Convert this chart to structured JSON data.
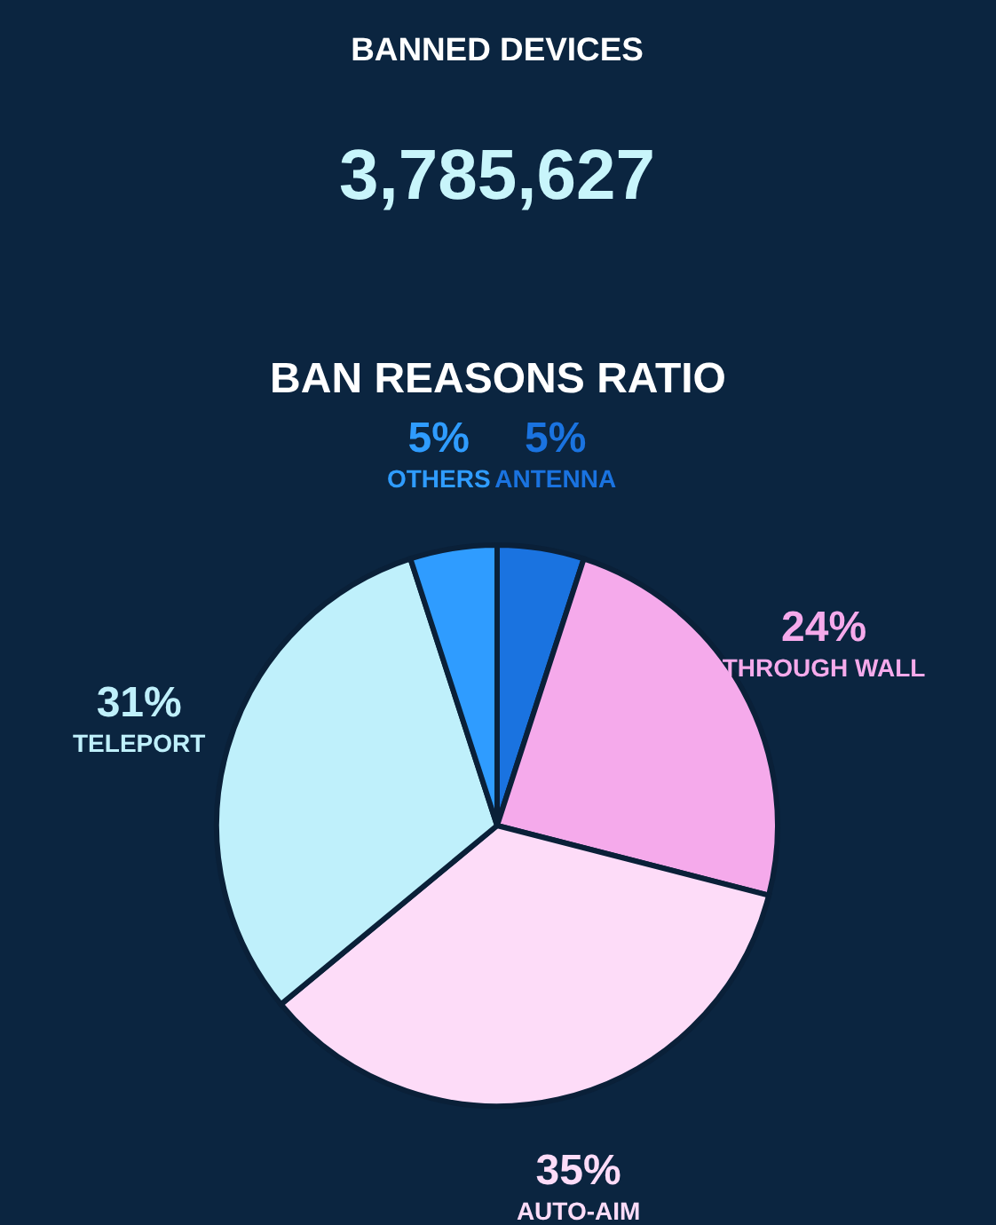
{
  "chart_data": [
    {
      "type": "other",
      "title": "BANNED DEVICES",
      "subtitle": "3,785,627"
    },
    {
      "type": "pie",
      "title": "BAN REASONS RATIO",
      "categories": [
        "ANTENNA",
        "THROUGH WALL",
        "AUTO-AIM",
        "TELEPORT",
        "OTHERS"
      ],
      "values": [
        5,
        24,
        35,
        31,
        5
      ],
      "colors": [
        "#1a73e0",
        "#f5aaeb",
        "#fddcf8",
        "#bff0fb",
        "#2f9cff"
      ],
      "value_labels": [
        "5%",
        "24%",
        "35%",
        "31%",
        "5%"
      ]
    }
  ]
}
